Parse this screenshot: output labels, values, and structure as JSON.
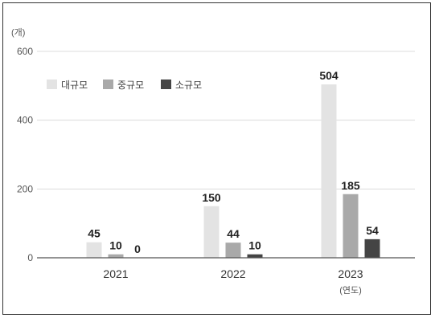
{
  "chart_data": {
    "type": "bar",
    "categories": [
      "2021",
      "2022",
      "2023"
    ],
    "x_unit": "(연도)",
    "y_unit": "(개)",
    "yticks": [
      0,
      200,
      400,
      600
    ],
    "ylim": [
      0,
      600
    ],
    "grid": true,
    "legend_position": "top-left",
    "series": [
      {
        "name": "대규모",
        "color": "#e3e3e3",
        "values": [
          45,
          150,
          504
        ]
      },
      {
        "name": "중규모",
        "color": "#a9a9a9",
        "values": [
          10,
          44,
          185
        ]
      },
      {
        "name": "소규모",
        "color": "#444444",
        "values": [
          0,
          10,
          54
        ]
      }
    ]
  }
}
